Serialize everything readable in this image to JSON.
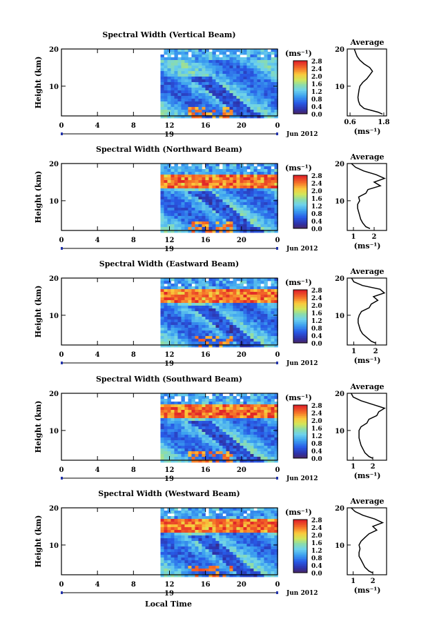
{
  "figure": {
    "x_axis_label": "Local Time",
    "date_label": "Jun 2012",
    "day_label": "19",
    "cbar_unit": "(ms⁻¹)",
    "avg_title": "Average",
    "avg_xlabel": "(ms⁻¹)",
    "y_axis_label": "Height (km)"
  },
  "chart_data": [
    {
      "type": "heatmap",
      "title": "Spectral Width (Vertical Beam)",
      "x_ticks": [
        "0",
        "4",
        "8",
        "12",
        "16",
        "20",
        "0"
      ],
      "x_range_hours": [
        0,
        24
      ],
      "data_start_hour": 11,
      "y_ticks": [
        "10",
        "20"
      ],
      "y_range_km": [
        2,
        20
      ],
      "colorbar": {
        "range": [
          0.0,
          2.8
        ],
        "ticks": [
          "2.8",
          "2.4",
          "2.0",
          "1.6",
          "1.2",
          "0.8",
          "0.4",
          "0.0"
        ]
      },
      "average_profile": {
        "x_ticks": [
          "0.6",
          "1.8"
        ],
        "x_range": [
          0.5,
          1.9
        ],
        "y_ticks": [
          "10",
          "20"
        ],
        "points": [
          [
            1.75,
            2.5
          ],
          [
            1.6,
            3
          ],
          [
            1.35,
            3.5
          ],
          [
            1.1,
            4
          ],
          [
            0.95,
            5
          ],
          [
            0.9,
            6
          ],
          [
            0.88,
            7
          ],
          [
            0.9,
            8
          ],
          [
            0.92,
            9
          ],
          [
            0.95,
            10
          ],
          [
            1.05,
            11
          ],
          [
            1.2,
            12
          ],
          [
            1.3,
            13
          ],
          [
            1.4,
            14
          ],
          [
            1.3,
            15
          ],
          [
            1.1,
            16
          ],
          [
            0.95,
            17
          ],
          [
            0.85,
            18
          ],
          [
            0.8,
            19
          ],
          [
            0.75,
            20
          ]
        ]
      }
    },
    {
      "type": "heatmap",
      "title": "Spectral Width (Northward Beam)",
      "x_ticks": [
        "0",
        "4",
        "8",
        "12",
        "16",
        "20",
        "0"
      ],
      "x_range_hours": [
        0,
        24
      ],
      "data_start_hour": 11,
      "y_ticks": [
        "10",
        "20"
      ],
      "y_range_km": [
        2,
        20
      ],
      "colorbar": {
        "range": [
          0.0,
          2.8
        ],
        "ticks": [
          "2.8",
          "2.4",
          "2.0",
          "1.6",
          "1.2",
          "0.8",
          "0.4",
          "0.0"
        ]
      },
      "average_profile": {
        "x_ticks": [
          "1",
          "2"
        ],
        "x_range": [
          0.7,
          2.6
        ],
        "y_ticks": [
          "10",
          "20"
        ],
        "points": [
          [
            1.8,
            2.5
          ],
          [
            1.6,
            3
          ],
          [
            1.45,
            4
          ],
          [
            1.35,
            5
          ],
          [
            1.3,
            6
          ],
          [
            1.25,
            7
          ],
          [
            1.2,
            8
          ],
          [
            1.2,
            9
          ],
          [
            1.3,
            10
          ],
          [
            1.25,
            11
          ],
          [
            1.6,
            12
          ],
          [
            1.7,
            13
          ],
          [
            2.3,
            14
          ],
          [
            2.0,
            15
          ],
          [
            2.5,
            16
          ],
          [
            2.1,
            17
          ],
          [
            1.5,
            18
          ],
          [
            1.1,
            19
          ],
          [
            0.9,
            20
          ]
        ]
      }
    },
    {
      "type": "heatmap",
      "title": "Spectral Width (Eastward Beam)",
      "x_ticks": [
        "0",
        "4",
        "8",
        "12",
        "16",
        "20",
        "0"
      ],
      "x_range_hours": [
        0,
        24
      ],
      "data_start_hour": 11,
      "y_ticks": [
        "10",
        "20"
      ],
      "y_range_km": [
        2,
        20
      ],
      "colorbar": {
        "range": [
          0.0,
          2.8
        ],
        "ticks": [
          "2.8",
          "2.4",
          "2.0",
          "1.6",
          "1.2",
          "0.8",
          "0.4",
          "0.0"
        ]
      },
      "average_profile": {
        "x_ticks": [
          "1",
          "2"
        ],
        "x_range": [
          0.7,
          2.5
        ],
        "y_ticks": [
          "10",
          "20"
        ],
        "points": [
          [
            2.0,
            2.5
          ],
          [
            1.8,
            3
          ],
          [
            1.6,
            4
          ],
          [
            1.4,
            5
          ],
          [
            1.3,
            6
          ],
          [
            1.25,
            7
          ],
          [
            1.2,
            8
          ],
          [
            1.2,
            9
          ],
          [
            1.25,
            10
          ],
          [
            1.35,
            11
          ],
          [
            1.7,
            12
          ],
          [
            1.8,
            13
          ],
          [
            2.1,
            14
          ],
          [
            1.9,
            15
          ],
          [
            2.4,
            16
          ],
          [
            2.2,
            17
          ],
          [
            1.4,
            18
          ],
          [
            1.0,
            19
          ],
          [
            0.9,
            20
          ]
        ]
      }
    },
    {
      "type": "heatmap",
      "title": "Spectral Width (Southward Beam)",
      "x_ticks": [
        "0",
        "4",
        "8",
        "12",
        "16",
        "20",
        "0"
      ],
      "x_range_hours": [
        0,
        24
      ],
      "data_start_hour": 11,
      "y_ticks": [
        "10",
        "20"
      ],
      "y_range_km": [
        2,
        20
      ],
      "colorbar": {
        "range": [
          0.0,
          2.8
        ],
        "ticks": [
          "2.8",
          "2.4",
          "2.0",
          "1.6",
          "1.2",
          "0.8",
          "0.4",
          "0.0"
        ]
      },
      "average_profile": {
        "x_ticks": [
          "1",
          "2"
        ],
        "x_range": [
          0.7,
          2.7
        ],
        "y_ticks": [
          "10",
          "20"
        ],
        "points": [
          [
            2.0,
            2.5
          ],
          [
            1.8,
            3
          ],
          [
            1.6,
            4
          ],
          [
            1.5,
            5
          ],
          [
            1.4,
            6
          ],
          [
            1.35,
            7
          ],
          [
            1.3,
            8
          ],
          [
            1.3,
            9
          ],
          [
            1.3,
            10
          ],
          [
            1.4,
            11
          ],
          [
            1.7,
            12
          ],
          [
            1.8,
            13
          ],
          [
            2.2,
            14
          ],
          [
            2.3,
            15
          ],
          [
            2.6,
            16
          ],
          [
            2.0,
            17
          ],
          [
            1.4,
            18
          ],
          [
            1.0,
            19
          ],
          [
            0.9,
            20
          ]
        ]
      }
    },
    {
      "type": "heatmap",
      "title": "Spectral Width (Westward Beam)",
      "x_ticks": [
        "0",
        "4",
        "8",
        "12",
        "16",
        "20",
        "0"
      ],
      "x_range_hours": [
        0,
        24
      ],
      "data_start_hour": 11,
      "y_ticks": [
        "10",
        "20"
      ],
      "y_range_km": [
        2,
        20
      ],
      "colorbar": {
        "range": [
          0.0,
          2.8
        ],
        "ticks": [
          "2.8",
          "2.4",
          "2.0",
          "1.6",
          "1.2",
          "0.8",
          "0.4",
          "0.0"
        ]
      },
      "average_profile": {
        "x_ticks": [
          "1",
          "2"
        ],
        "x_range": [
          0.7,
          2.7
        ],
        "y_ticks": [
          "10",
          "20"
        ],
        "points": [
          [
            2.0,
            2.5
          ],
          [
            1.8,
            3
          ],
          [
            1.6,
            4
          ],
          [
            1.5,
            5
          ],
          [
            1.4,
            6
          ],
          [
            1.3,
            7
          ],
          [
            1.3,
            8
          ],
          [
            1.35,
            9
          ],
          [
            1.3,
            10
          ],
          [
            1.4,
            11
          ],
          [
            1.6,
            12
          ],
          [
            1.8,
            13
          ],
          [
            2.2,
            14
          ],
          [
            2.0,
            15
          ],
          [
            2.5,
            16
          ],
          [
            2.1,
            17
          ],
          [
            1.5,
            18
          ],
          [
            1.1,
            19
          ],
          [
            0.9,
            20
          ]
        ]
      }
    }
  ]
}
